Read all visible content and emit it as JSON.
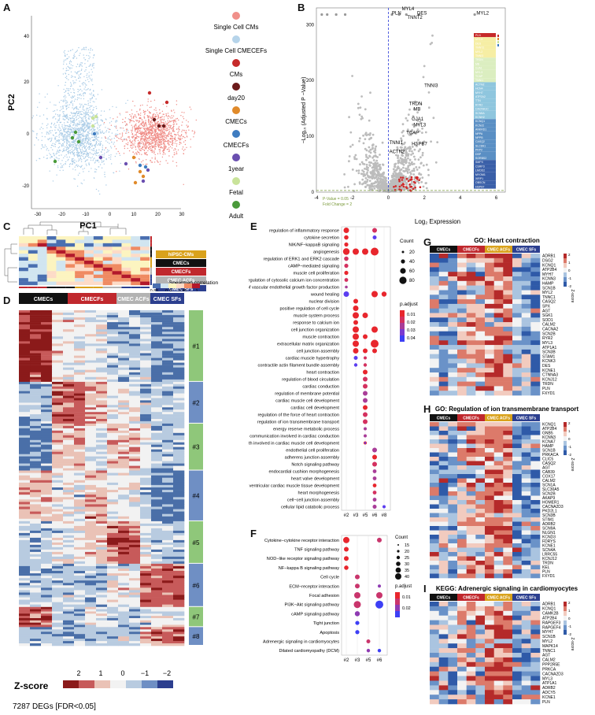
{
  "panels": {
    "A": "A",
    "B": "B",
    "C": "C",
    "D": "D",
    "E": "E",
    "F": "F",
    "G": "G",
    "H": "H",
    "I": "I"
  },
  "panelA": {
    "xlabel": "PC1",
    "ylabel": "PC2",
    "xticks": [
      "-30",
      "-20",
      "-10",
      "0",
      "10",
      "20",
      "30"
    ],
    "yticks": [
      "40",
      "20",
      "0",
      "-20"
    ],
    "legend": [
      {
        "label": "Single Cell CMs",
        "color": "#f0908a"
      },
      {
        "label": "Single Cell CMECEFs",
        "color": "#b6d4ea"
      },
      {
        "label": "CMs",
        "color": "#c62a2a"
      },
      {
        "label": "day20",
        "color": "#6b1a1a"
      },
      {
        "label": "CMECs",
        "color": "#e08a2a"
      },
      {
        "label": "CMECFs",
        "color": "#3f7cc0"
      },
      {
        "label": "1year",
        "color": "#6a4fb0"
      },
      {
        "label": "Fetal",
        "color": "#c9e39a"
      },
      {
        "label": "Adult",
        "color": "#4a9a3a"
      }
    ]
  },
  "panelB": {
    "xlabel": "Log₂ Expression",
    "ylabel": "−Log₁₀ (Adjusted P −Value)",
    "xticks": [
      "-4",
      "-2",
      "0",
      "2",
      "4",
      "6"
    ],
    "yticks": [
      "0",
      "100",
      "200",
      "300"
    ],
    "legend_pvalue": "P-Value = 0.05",
    "legend_fc": "Fold Change = 2",
    "genes": [
      "PLN",
      "MYL4",
      "DES",
      "TNNT2",
      "MYL2",
      "TNNI3",
      "TRDN",
      "MB",
      "GJA1",
      "MYL3",
      "TCAP",
      "TNNI1",
      "ACTN2",
      "HCN4",
      "MYH7",
      "ATP2A2",
      "TTN",
      "RYR2",
      "CACNA1C",
      "SCN5A",
      "KCNH2",
      "KCNQ1",
      "KCNJ2",
      "ANKRD1",
      "NPPA",
      "NPPB",
      "CASQ2",
      "SLC8A1",
      "PKP2",
      "DSP",
      "SORBS2",
      "SMPX",
      "CSRP3",
      "LMOD2",
      "MYOM1",
      "XIRP1",
      "OBSCN",
      "HSPB7",
      "FHL2",
      "CKMT2",
      "COX6A2",
      "MYBPC3",
      "ACTC1",
      "TPM1"
    ],
    "annot": [
      "MYL4",
      "PLN",
      "DES",
      "TNNT2",
      "MYL2",
      "TNNI3",
      "TRDN",
      "MB",
      "GJA1",
      "MYL3",
      "TCAP",
      "TNNI1",
      "HSPB7",
      "ACTN2"
    ]
  },
  "panelC": {
    "legend": [
      {
        "label": "hiPSC-CMs",
        "color": "#d9a21c"
      },
      {
        "label": "CMECs",
        "color": "#111111"
      },
      {
        "label": "CMECFs",
        "color": "#c0282d"
      },
      {
        "label": "CMEC ACFs",
        "color": "#b3b3b3"
      },
      {
        "label": "CMEC SFs",
        "color": "#2c3f8f"
      }
    ],
    "colorbar_title": "Spearman correlation",
    "ticks": [
      "0.85",
      "0.9",
      "0.95",
      "1"
    ]
  },
  "panelD": {
    "headers": [
      {
        "label": "CMECs",
        "color": "#111111"
      },
      {
        "label": "CMECFs",
        "color": "#c0282d"
      },
      {
        "label": "CMEC ACFs",
        "color": "#b3b3b3"
      },
      {
        "label": "CMEC SFs",
        "color": "#2c3f8f"
      }
    ],
    "clusters": [
      "#1",
      "#2",
      "#3",
      "#4",
      "#5",
      "#6",
      "#7",
      "#8"
    ],
    "zscore_label": "Z-score",
    "zticks": [
      "2",
      "1",
      "0",
      "−1",
      "−2"
    ],
    "footer": "7287 DEGs [FDR<0.05]"
  },
  "panelE": {
    "terms": [
      "regulation of inflammatory response",
      "cytokine secretion",
      "NIK/NF−kappaB signaling",
      "angiogenesis",
      "regulation of ERK1 and ERK2 cascade",
      "cAMP−mediated signaling",
      "muscle cell proliferation",
      "positive regulation of cytosolic calcium ion concentration",
      "regulation of vascular endothelial growth factor production",
      "wound healing",
      "nuclear division",
      "positive regulation of cell cycle",
      "muscle system process",
      "response to calcium ion",
      "cell junction organization",
      "muscle contraction",
      "extracellular matrix organization",
      "cell junction assembly",
      "cardiac muscle hypertrophy",
      "contractile actin filament bundle assembly",
      "heart contraction",
      "regulation of blood circulation",
      "cardiac conduction",
      "regulation of membrane potential",
      "cardiac muscle cell development",
      "cardiac cell development",
      "regulation of the force of heart contraction",
      "regulation of ion transmembrane transport",
      "energy reserve metabolic process",
      "cell communication involved in cardiac conduction",
      "cell growth involved in cardiac muscle cell development",
      "endothelial cell proliferation",
      "adherens junction assembly",
      "Notch signaling pathway",
      "endocardial cushion morphogenesis",
      "heart valve development",
      "ventricular cardiac muscle tissue development",
      "heart morphogenesis",
      "cell−cell junction assembly",
      "cellular lipid catabolic process"
    ],
    "xcats": [
      "#2",
      "#3",
      "#5",
      "#6",
      "#8"
    ],
    "count_title": "Count",
    "count_ticks": [
      "20",
      "40",
      "60",
      "80"
    ],
    "padj_title": "p.adjust",
    "padj_ticks": [
      "0.01",
      "0.02",
      "0.03",
      "0.04"
    ]
  },
  "panelF": {
    "terms": [
      "Cytokine−cytokine receptor interaction",
      "TNF signaling pathway",
      "NOD−like receptor signaling pathway",
      "NF−kappa B signaling pathway",
      "Cell cycle",
      "ECM−receptor interaction",
      "Focal adhesion",
      "PI3K−Akt signaling pathway",
      "cAMP signaling pathway",
      "Tight junction",
      "Apoptosis",
      "Adrenergic signaling in cardiomyocytes",
      "Dilated cardiomyopathy (DCM)"
    ],
    "xcats": [
      "#2",
      "#3",
      "#5",
      "#6"
    ],
    "count_title": "Count",
    "count_ticks": [
      "15",
      "20",
      "25",
      "30",
      "35",
      "40"
    ],
    "padj_title": "p.adjust",
    "padj_ticks": [
      "0.01",
      "0.02"
    ]
  },
  "panelG": {
    "title": "GO: Heart contraction",
    "genes": [
      "ADRB1",
      "DSG2",
      "KCNQ1",
      "ATP2B4",
      "MYH7",
      "KCNN3",
      "HAMP",
      "SCN1B",
      "MYL2",
      "TNNC1",
      "CASQ2",
      "SPX",
      "AGT",
      "SGK1",
      "SOD1",
      "CALM2",
      "CACNA2",
      "SCN2B",
      "RYR2",
      "MYL3",
      "ATP1A1",
      "SCN3B",
      "STAM1",
      "KCNK3",
      "DES",
      "KCNE1",
      "CTNNA3",
      "KCNJ12",
      "TRDN",
      "PLN",
      "FXYD1"
    ],
    "zscore": "Z-score",
    "zticks": [
      "2",
      "1",
      "0",
      "-1",
      "-2"
    ]
  },
  "panelH": {
    "title": "GO: Regulation of ion transmembrane transport",
    "genes": [
      "KCNQ1",
      "ATP2B4",
      "GNB5",
      "KCNN3",
      "KCNA7",
      "HAMP",
      "SCN1B",
      "PRKACA",
      "CLIC5",
      "CASQ2",
      "AGT",
      "CAB39",
      "COX17",
      "CALM2",
      "SCN1A",
      "SLC30A5",
      "SCN2B",
      "AKAP9",
      "HOMER1",
      "CACNA2D3",
      "PKD2L1",
      "SCN3B",
      "STIM1",
      "ADRB2",
      "SCN9A",
      "NLGN1",
      "KCND3",
      "FDRYS",
      "KCNE1",
      "SCN4A",
      "LRRC55",
      "KCNJ12",
      "TRDN",
      "KEL",
      "PLN",
      "FXYD1"
    ],
    "zscore": "Z-score",
    "zticks": [
      "2",
      "1",
      "0",
      "-1",
      "-2"
    ]
  },
  "panelI": {
    "title": "KEGG: Adrenergic signaling in cardiomyocytes",
    "genes": [
      "ADRB1",
      "KCNQ1",
      "CAMK2B",
      "ATP2B4",
      "RAPGEF3",
      "RAPGEF4",
      "MYH7",
      "SCN1B",
      "MYL2",
      "MAPK14",
      "TNNC1",
      "AGT",
      "CALM2",
      "PPP2R5E",
      "PRKCA",
      "CACNA2D3",
      "MYL3",
      "ATP1A1",
      "ADRB2",
      "ADCY5",
      "KCNE1",
      "PLN"
    ],
    "zscore": "Z-score",
    "zticks": [
      "2",
      "1",
      "0",
      "-1",
      "-2"
    ]
  },
  "heatHeaders": [
    {
      "label": "CMECs",
      "color": "#111111"
    },
    {
      "label": "CMECFs",
      "color": "#c0282d"
    },
    {
      "label": "CMEC ACFs",
      "color": "#d9a21c"
    },
    {
      "label": "CMEC SFs",
      "color": "#2c3f8f"
    }
  ]
}
